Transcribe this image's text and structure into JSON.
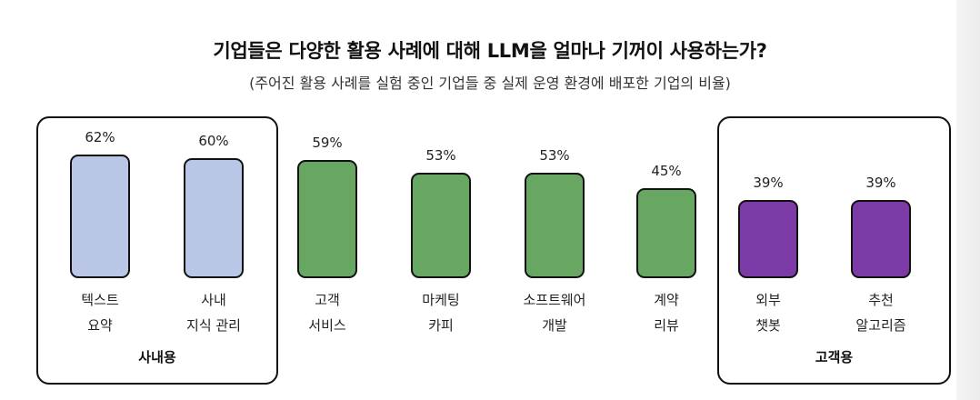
{
  "title": "기업들은 다양한 활용 사례에 대해 LLM을 얼마나 기꺼이 사용하는가?",
  "subtitle": "(주어진 활용 사례를 실험 중인 기업들 중 실제 운영 환경에 배포한 기업의 비율)",
  "colors": {
    "internal": "#bac6e6",
    "middle": "#67a762",
    "customer": "#7b3aa5",
    "outline": "#111111"
  },
  "groups": [
    {
      "label": "사내용",
      "first_index": 0,
      "last_index": 1
    },
    {
      "label": "고객용",
      "first_index": 6,
      "last_index": 7
    }
  ],
  "chart_data": {
    "type": "bar",
    "title": "기업들은 다양한 활용 사례에 대해 LLM을 얼마나 기꺼이 사용하는가?",
    "subtitle": "(주어진 활용 사례를 실험 중인 기업들 중 실제 운영 환경에 배포한 기업의 비율)",
    "categories": [
      [
        "텍스트",
        "요약"
      ],
      [
        "사내",
        "지식 관리"
      ],
      [
        "고객",
        "서비스"
      ],
      [
        "마케팅",
        "카피"
      ],
      [
        "소프트웨어",
        "개발"
      ],
      [
        "계약",
        "리뷰"
      ],
      [
        "외부",
        "챗봇"
      ],
      [
        "추천",
        "알고리즘"
      ]
    ],
    "values": [
      62,
      60,
      59,
      53,
      53,
      45,
      39,
      39
    ],
    "value_labels": [
      "62%",
      "60%",
      "59%",
      "53%",
      "53%",
      "45%",
      "39%",
      "39%"
    ],
    "bar_groups": [
      "internal",
      "internal",
      "middle",
      "middle",
      "middle",
      "middle",
      "customer",
      "customer"
    ],
    "unit": "%",
    "xlabel": "",
    "ylabel": ""
  }
}
